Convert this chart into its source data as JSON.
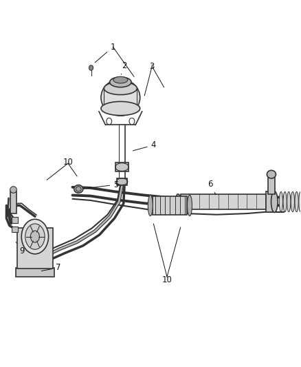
{
  "bg_color": "#ffffff",
  "fig_width": 4.38,
  "fig_height": 5.33,
  "dpi": 100,
  "line_color": "#333333",
  "label_color": "#111111",
  "label_fontsize": 8.5,
  "lw_main": 1.2,
  "lw_thin": 0.8
}
